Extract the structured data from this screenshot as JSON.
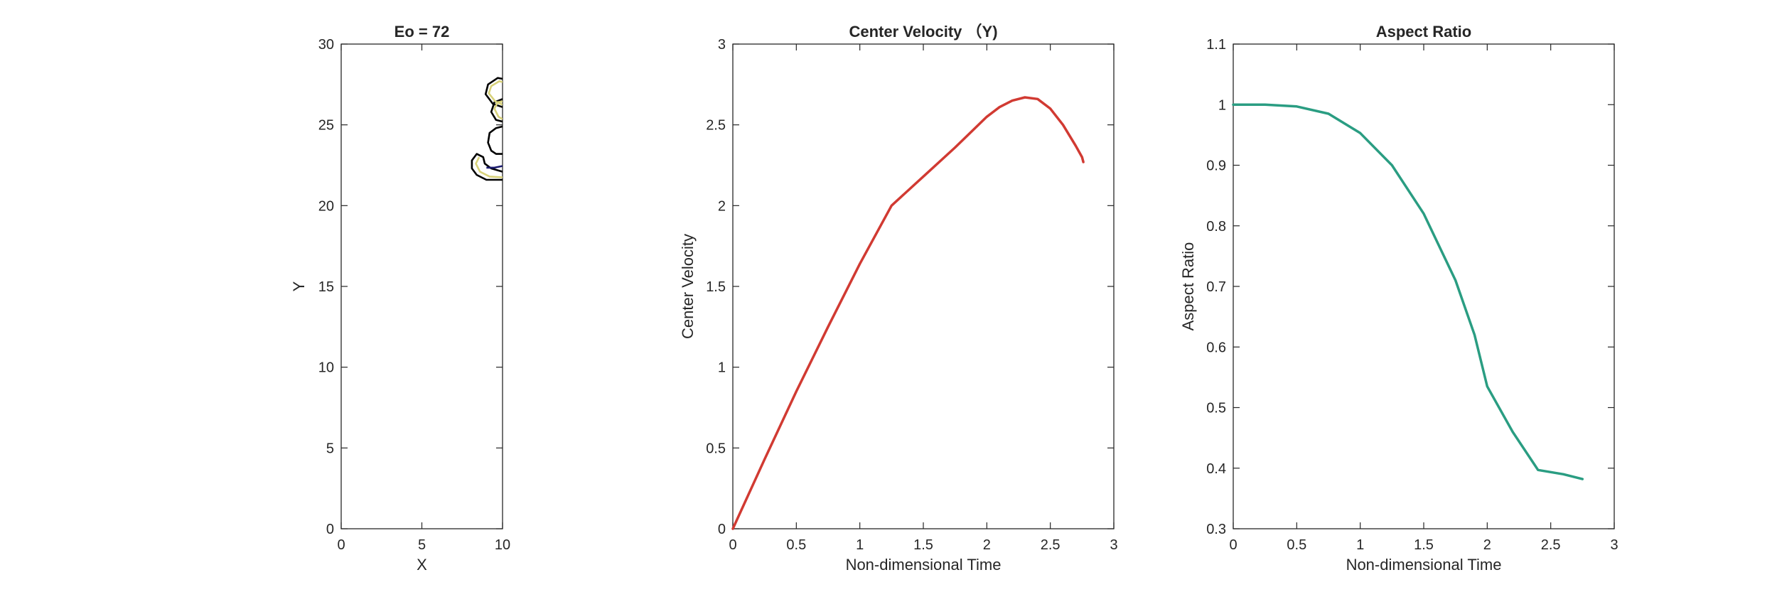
{
  "chart_data": [
    {
      "type": "contour",
      "title": "Eo = 72",
      "xlabel": "X",
      "ylabel": "Y",
      "xlim": [
        0,
        10
      ],
      "ylim": [
        0,
        30
      ],
      "xticks": [
        0,
        5,
        10
      ],
      "yticks": [
        0,
        5,
        10,
        15,
        20,
        25,
        30
      ],
      "grid": false,
      "contours": [
        {
          "color": "#000000",
          "points": [
            [
              10,
              21.6
            ],
            [
              9.0,
              21.6
            ],
            [
              8.4,
              21.9
            ],
            [
              8.1,
              22.3
            ],
            [
              8.1,
              22.8
            ],
            [
              8.4,
              23.2
            ],
            [
              8.8,
              23.0
            ],
            [
              8.9,
              22.6
            ],
            [
              9.3,
              22.3
            ],
            [
              10,
              22.1
            ]
          ]
        },
        {
          "color": "#000000",
          "points": [
            [
              10,
              23.2
            ],
            [
              9.6,
              23.2
            ],
            [
              9.3,
              23.4
            ],
            [
              9.1,
              23.9
            ],
            [
              9.2,
              24.5
            ],
            [
              9.6,
              24.8
            ],
            [
              10,
              24.9
            ]
          ]
        },
        {
          "color": "#000000",
          "points": [
            [
              10,
              25.2
            ],
            [
              9.6,
              25.3
            ],
            [
              9.3,
              25.8
            ],
            [
              9.5,
              26.4
            ],
            [
              10,
              26.6
            ]
          ]
        },
        {
          "color": "#000000",
          "points": [
            [
              10,
              26.1
            ],
            [
              9.4,
              26.3
            ],
            [
              8.95,
              26.9
            ],
            [
              9.1,
              27.5
            ],
            [
              9.7,
              27.9
            ],
            [
              10,
              27.85
            ]
          ]
        },
        {
          "color": "#1a1a6e",
          "points": [
            [
              9.0,
              22.35
            ],
            [
              9.5,
              22.35
            ],
            [
              10,
              22.45
            ]
          ]
        },
        {
          "color": "#d8d27a",
          "points": [
            [
              10,
              21.75
            ],
            [
              9.2,
              21.8
            ],
            [
              8.6,
              22.1
            ],
            [
              8.35,
              22.6
            ],
            [
              8.55,
              23.0
            ]
          ]
        },
        {
          "color": "#d8d27a",
          "points": [
            [
              10,
              25.35
            ],
            [
              9.75,
              25.5
            ],
            [
              9.5,
              26.0
            ],
            [
              9.7,
              26.4
            ],
            [
              10,
              26.45
            ]
          ]
        },
        {
          "color": "#d8d27a",
          "points": [
            [
              10,
              26.25
            ],
            [
              9.55,
              26.45
            ],
            [
              9.15,
              26.95
            ],
            [
              9.3,
              27.4
            ],
            [
              9.8,
              27.7
            ],
            [
              10,
              27.65
            ]
          ]
        }
      ]
    },
    {
      "type": "line",
      "title": "Center Velocity （Y)",
      "xlabel": "Non-dimensional Time",
      "ylabel": "Center Velocity",
      "xlim": [
        0,
        3
      ],
      "ylim": [
        0,
        3
      ],
      "xticks": [
        0,
        0.5,
        1,
        1.5,
        2,
        2.5,
        3
      ],
      "yticks": [
        0,
        0.5,
        1,
        1.5,
        2,
        2.5,
        3
      ],
      "grid": false,
      "series": [
        {
          "color": "#d13a32",
          "x": [
            0,
            0.25,
            0.5,
            0.75,
            1.0,
            1.25,
            1.5,
            1.75,
            2.0,
            2.1,
            2.2,
            2.3,
            2.4,
            2.5,
            2.6,
            2.7,
            2.75,
            2.76
          ],
          "y": [
            0,
            0.43,
            0.85,
            1.25,
            1.64,
            2.0,
            2.18,
            2.36,
            2.55,
            2.61,
            2.65,
            2.67,
            2.66,
            2.6,
            2.5,
            2.37,
            2.3,
            2.27
          ]
        }
      ]
    },
    {
      "type": "line",
      "title": "Aspect Ratio",
      "xlabel": "Non-dimensional Time",
      "ylabel": "Aspect Ratio",
      "xlim": [
        0,
        3
      ],
      "ylim": [
        0.3,
        1.1
      ],
      "xticks": [
        0,
        0.5,
        1,
        1.5,
        2,
        2.5,
        3
      ],
      "yticks": [
        0.3,
        0.4,
        0.5,
        0.6,
        0.7,
        0.8,
        0.9,
        1,
        1.1
      ],
      "grid": false,
      "series": [
        {
          "color": "#2a9d82",
          "x": [
            0,
            0.25,
            0.5,
            0.75,
            1.0,
            1.25,
            1.5,
            1.75,
            1.9,
            2.0,
            2.2,
            2.4,
            2.6,
            2.75
          ],
          "y": [
            1.0,
            1.0,
            0.997,
            0.985,
            0.953,
            0.9,
            0.82,
            0.71,
            0.62,
            0.535,
            0.46,
            0.397,
            0.39,
            0.382
          ]
        }
      ]
    }
  ]
}
